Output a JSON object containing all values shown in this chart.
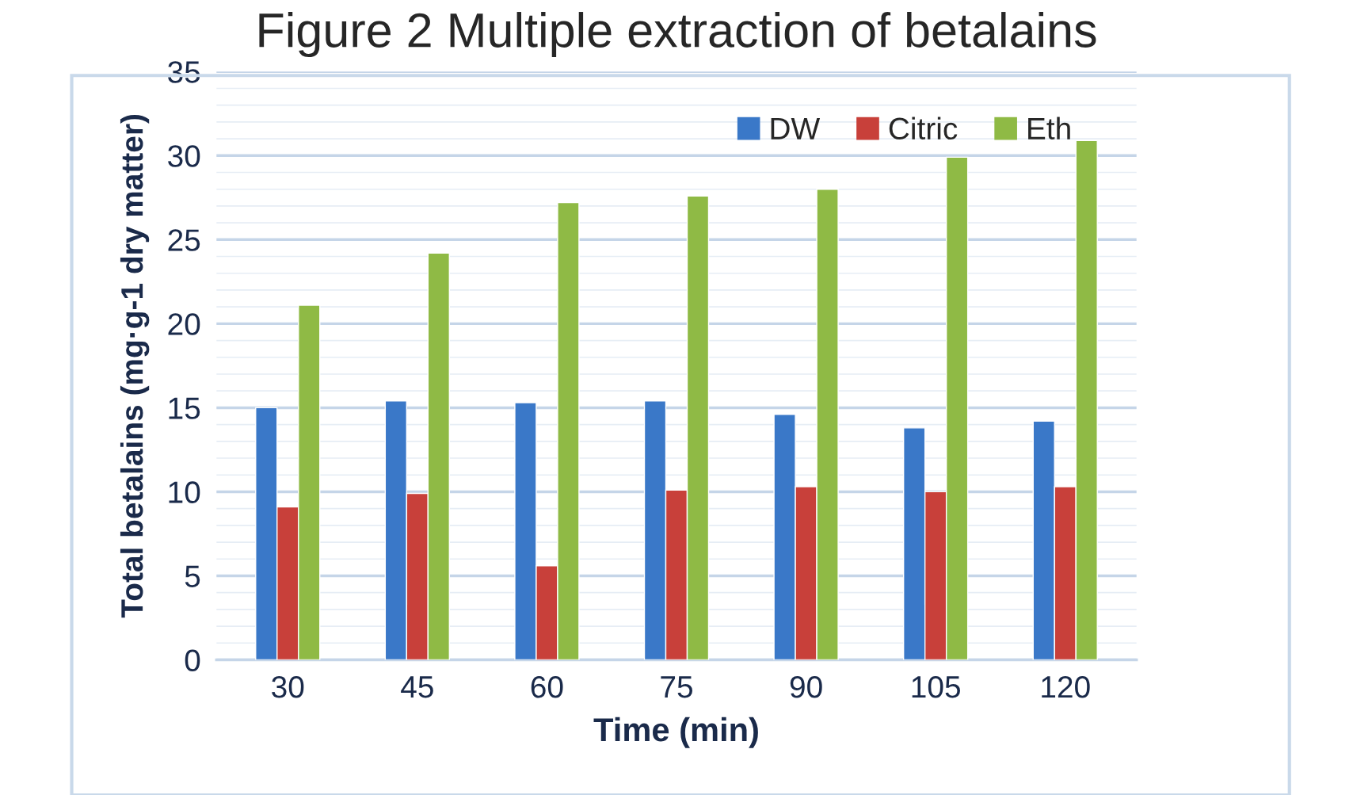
{
  "chart_data": {
    "type": "bar",
    "title": "Figure 2 Multiple extraction of betalains",
    "xlabel": "Time (min)",
    "ylabel": "Total betalains (mg·g-1 dry matter)",
    "categories": [
      "30",
      "45",
      "60",
      "75",
      "90",
      "105",
      "120"
    ],
    "series": [
      {
        "name": "DW",
        "color": "#3a78c8",
        "values": [
          15.0,
          15.4,
          15.3,
          15.4,
          14.6,
          13.8,
          14.2
        ]
      },
      {
        "name": "Citric",
        "color": "#c8403a",
        "values": [
          9.1,
          9.9,
          5.6,
          10.1,
          10.3,
          10.0,
          10.3
        ]
      },
      {
        "name": "Eth",
        "color": "#8fba45",
        "values": [
          21.1,
          24.2,
          27.2,
          27.6,
          28.0,
          29.9,
          30.9
        ]
      }
    ],
    "ylim": [
      0,
      35
    ],
    "yticks": [
      0,
      {
        "value": 1,
        "label": null
      },
      {
        "value": 2,
        "label": null
      },
      {
        "value": 3,
        "label": null
      },
      {
        "value": 4,
        "label": null
      },
      5,
      {
        "value": 6,
        "label": null
      },
      {
        "value": 7,
        "label": null
      },
      {
        "value": 8,
        "label": null
      },
      {
        "value": 9,
        "label": null
      },
      10,
      {
        "value": 11,
        "label": null
      },
      {
        "value": 12,
        "label": null
      },
      {
        "value": 13,
        "label": null
      },
      {
        "value": 14,
        "label": null
      },
      15,
      {
        "value": 16,
        "label": null
      },
      {
        "value": 17,
        "label": null
      },
      {
        "value": 18,
        "label": null
      },
      {
        "value": 19,
        "label": null
      },
      20,
      {
        "value": 21,
        "label": null
      },
      {
        "value": 22,
        "label": null
      },
      {
        "value": 23,
        "label": null
      },
      {
        "value": 24,
        "label": null
      },
      25,
      {
        "value": 26,
        "label": null
      },
      {
        "value": 27,
        "label": null
      },
      {
        "value": 28,
        "label": null
      },
      {
        "value": 29,
        "label": null
      },
      30,
      {
        "value": 31,
        "label": null
      },
      {
        "value": 32,
        "label": null
      },
      {
        "value": 33,
        "label": null
      },
      {
        "value": 34,
        "label": null
      },
      35
    ],
    "grid": "y",
    "legend": "top right"
  }
}
